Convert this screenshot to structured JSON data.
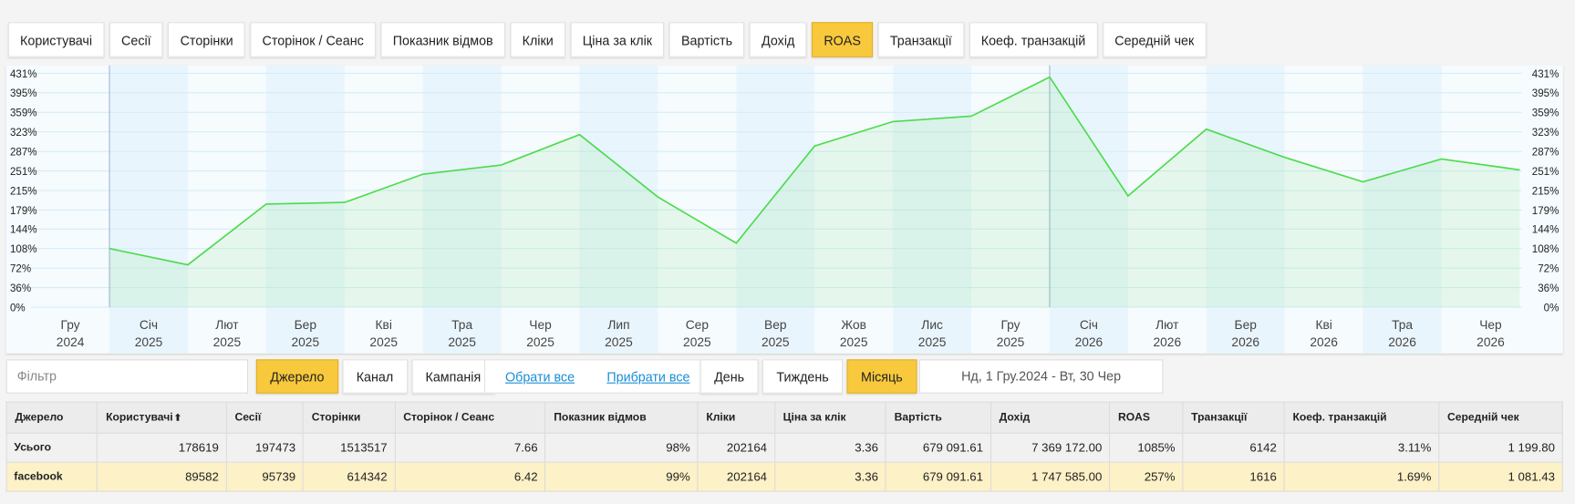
{
  "tabs": [
    {
      "label": "Користувачі"
    },
    {
      "label": "Сесії"
    },
    {
      "label": "Сторінки"
    },
    {
      "label": "Сторінок / Сеанс"
    },
    {
      "label": "Показник відмов"
    },
    {
      "label": "Кліки"
    },
    {
      "label": "Ціна за клік"
    },
    {
      "label": "Вартість"
    },
    {
      "label": "Дохід"
    },
    {
      "label": "ROAS",
      "active": true
    },
    {
      "label": "Транзакції"
    },
    {
      "label": "Коеф. транзакцій"
    },
    {
      "label": "Середній чек"
    }
  ],
  "chart": {
    "type": "line",
    "categories": [
      "Гру",
      "Січ",
      "Лют",
      "Бер",
      "Кві",
      "Тра",
      "Чер",
      "Лип",
      "Сер",
      "Вер",
      "Жов",
      "Лис",
      "Гру",
      "Січ",
      "Лют",
      "Бер",
      "Кві",
      "Тра",
      "Чер"
    ],
    "category_years": [
      "2024",
      "2025",
      "2025",
      "2025",
      "2025",
      "2025",
      "2025",
      "2025",
      "2025",
      "2025",
      "2025",
      "2025",
      "2025",
      "2026",
      "2026",
      "2026",
      "2026",
      "2026",
      "2026"
    ],
    "values": [
      108,
      78,
      190,
      193,
      245,
      262,
      318,
      203,
      118,
      297,
      342,
      352,
      424,
      205,
      328,
      276,
      231,
      273,
      253
    ],
    "color": "#4cdb4c",
    "ylim": [
      0,
      431
    ],
    "yticks": [
      {
        "value": 0,
        "label": "0%"
      },
      {
        "value": 36,
        "label": "36%"
      },
      {
        "value": 72,
        "label": "72%"
      },
      {
        "value": 108,
        "label": "108%"
      },
      {
        "value": 144,
        "label": "144%"
      },
      {
        "value": 179,
        "label": "179%"
      },
      {
        "value": 215,
        "label": "215%"
      },
      {
        "value": 251,
        "label": "251%"
      },
      {
        "value": 287,
        "label": "287%"
      },
      {
        "value": 323,
        "label": "323%"
      },
      {
        "value": 359,
        "label": "359%"
      },
      {
        "value": 395,
        "label": "395%"
      },
      {
        "value": 431,
        "label": "431%"
      }
    ],
    "grid": true
  },
  "filter_placeholder": "Фільтр",
  "dimensions": [
    {
      "label": "Джерело",
      "active": true
    },
    {
      "label": "Канал"
    },
    {
      "label": "Кампанія"
    }
  ],
  "links": [
    "Обрати все",
    "Прибрати все"
  ],
  "periods": [
    {
      "label": "День"
    },
    {
      "label": "Тиждень"
    },
    {
      "label": "Місяць",
      "active": true
    }
  ],
  "date_range": "Нд, 1 Гру.2024 - Вт, 30 Чер",
  "table": {
    "columns": [
      "Джерело",
      "Користувачі",
      "Сесії",
      "Сторінки",
      "Сторінок / Сеанс",
      "Показник відмов",
      "Кліки",
      "Ціна за клік",
      "Вартість",
      "Дохід",
      "ROAS",
      "Транзакції",
      "Коеф. транзакцій",
      "Середній чек"
    ],
    "rows": [
      [
        "Усього",
        "178619",
        "197473",
        "1513517",
        "7.66",
        "98%",
        "202164",
        "3.36",
        "679 091.61",
        "7 369 172.00",
        "1085%",
        "6142",
        "3.11%",
        "1 199.80"
      ],
      [
        "facebook",
        "89582",
        "95739",
        "614342",
        "6.42",
        "99%",
        "202164",
        "3.36",
        "679 091.61",
        "1 747 585.00",
        "257%",
        "1616",
        "1.69%",
        "1 081.43"
      ]
    ]
  }
}
